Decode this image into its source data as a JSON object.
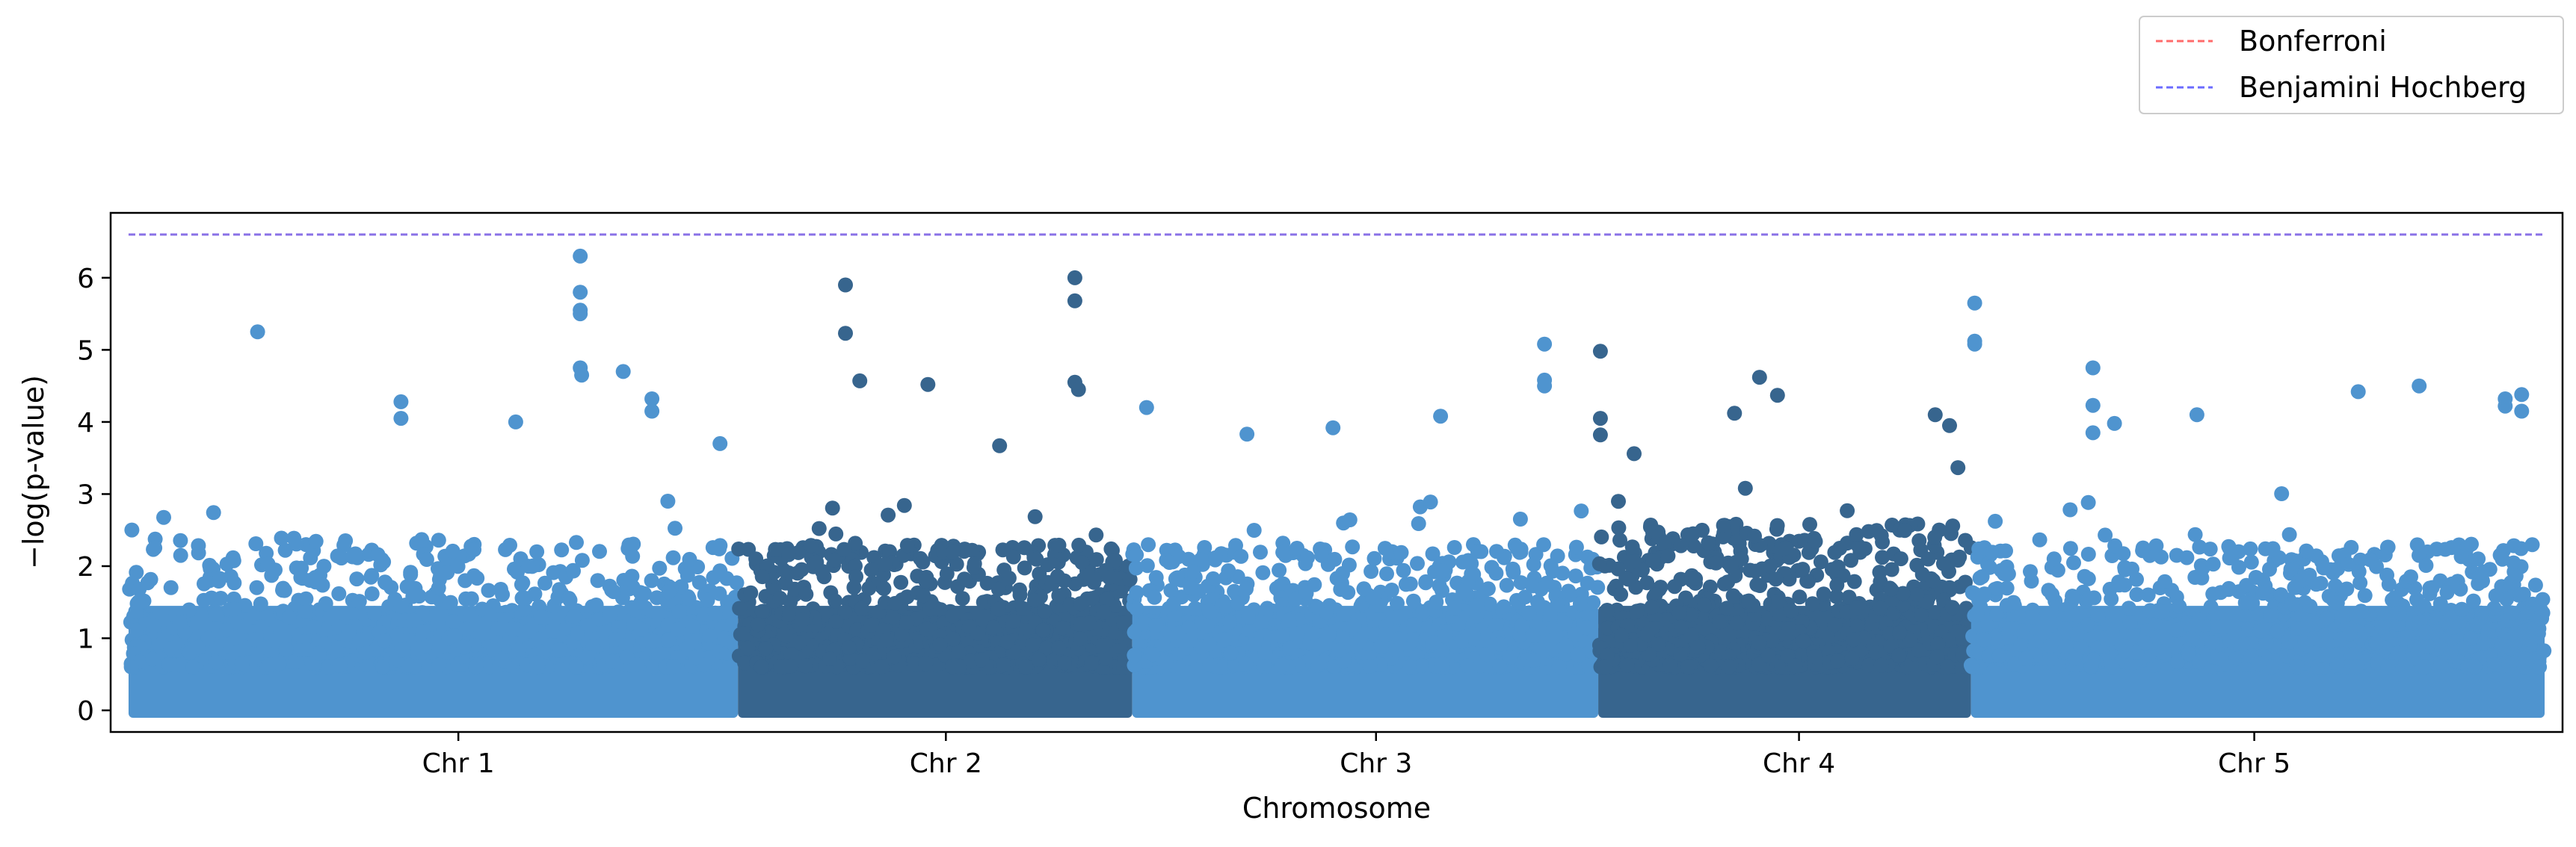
{
  "chart_data": {
    "type": "scatter",
    "title": "",
    "xlabel": "Chromosome",
    "ylabel": "−log(p-value)",
    "ylim": [
      -0.3,
      6.9
    ],
    "yticks": [
      0,
      1,
      2,
      3,
      4,
      5,
      6
    ],
    "grid": false,
    "legend_position": "top-right, outside above plot",
    "colors": {
      "light": "#4f94cf",
      "dark": "#37658e"
    },
    "chromosomes": [
      {
        "name": "Chr 1",
        "start": 0,
        "end": 850,
        "tick": 460,
        "color": "light"
      },
      {
        "name": "Chr 2",
        "start": 850,
        "end": 1400,
        "tick": 1140,
        "color": "dark"
      },
      {
        "name": "Chr 3",
        "start": 1400,
        "end": 2050,
        "tick": 1740,
        "color": "light"
      },
      {
        "name": "Chr 4",
        "start": 2050,
        "end": 2570,
        "tick": 2330,
        "color": "dark"
      },
      {
        "name": "Chr 5",
        "start": 2570,
        "end": 3370,
        "tick": 2965,
        "color": "light"
      }
    ],
    "x_range": [
      -25,
      3395
    ],
    "thresholds": [
      {
        "name": "Bonferroni",
        "value": 6.6,
        "color": "#ff6b6b"
      },
      {
        "name": "Benjamini Hochberg",
        "value": 6.6,
        "color": "#6b6bff"
      }
    ],
    "notable_points": [
      {
        "chr": "Chr 1",
        "x": 180,
        "y": 5.25
      },
      {
        "chr": "Chr 1",
        "x": 380,
        "y": 4.28
      },
      {
        "chr": "Chr 1",
        "x": 380,
        "y": 4.05
      },
      {
        "chr": "Chr 1",
        "x": 540,
        "y": 4.0
      },
      {
        "chr": "Chr 1",
        "x": 630,
        "y": 6.3
      },
      {
        "chr": "Chr 1",
        "x": 630,
        "y": 5.8
      },
      {
        "chr": "Chr 1",
        "x": 630,
        "y": 5.55
      },
      {
        "chr": "Chr 1",
        "x": 630,
        "y": 5.5
      },
      {
        "chr": "Chr 1",
        "x": 630,
        "y": 4.75
      },
      {
        "chr": "Chr 1",
        "x": 632,
        "y": 4.65
      },
      {
        "chr": "Chr 1",
        "x": 690,
        "y": 4.7
      },
      {
        "chr": "Chr 1",
        "x": 730,
        "y": 4.32
      },
      {
        "chr": "Chr 1",
        "x": 730,
        "y": 4.15
      },
      {
        "chr": "Chr 1",
        "x": 825,
        "y": 3.7
      },
      {
        "chr": "Chr 2",
        "x": 1000,
        "y": 5.9
      },
      {
        "chr": "Chr 2",
        "x": 1000,
        "y": 5.23
      },
      {
        "chr": "Chr 2",
        "x": 1020,
        "y": 4.57
      },
      {
        "chr": "Chr 2",
        "x": 1115,
        "y": 4.52
      },
      {
        "chr": "Chr 2",
        "x": 1215,
        "y": 3.67
      },
      {
        "chr": "Chr 2",
        "x": 1320,
        "y": 6.0
      },
      {
        "chr": "Chr 2",
        "x": 1320,
        "y": 5.68
      },
      {
        "chr": "Chr 2",
        "x": 1320,
        "y": 4.55
      },
      {
        "chr": "Chr 2",
        "x": 1325,
        "y": 4.45
      },
      {
        "chr": "Chr 3",
        "x": 1420,
        "y": 4.2
      },
      {
        "chr": "Chr 3",
        "x": 1560,
        "y": 3.83
      },
      {
        "chr": "Chr 3",
        "x": 1680,
        "y": 3.92
      },
      {
        "chr": "Chr 3",
        "x": 1830,
        "y": 4.08
      },
      {
        "chr": "Chr 3",
        "x": 1975,
        "y": 5.08
      },
      {
        "chr": "Chr 3",
        "x": 1975,
        "y": 4.58
      },
      {
        "chr": "Chr 3",
        "x": 1975,
        "y": 4.5
      },
      {
        "chr": "Chr 4",
        "x": 2053,
        "y": 4.98
      },
      {
        "chr": "Chr 4",
        "x": 2053,
        "y": 4.05
      },
      {
        "chr": "Chr 4",
        "x": 2053,
        "y": 3.82
      },
      {
        "chr": "Chr 4",
        "x": 2100,
        "y": 3.56
      },
      {
        "chr": "Chr 4",
        "x": 2275,
        "y": 4.62
      },
      {
        "chr": "Chr 4",
        "x": 2300,
        "y": 4.37
      },
      {
        "chr": "Chr 4",
        "x": 2240,
        "y": 4.12
      },
      {
        "chr": "Chr 4",
        "x": 2520,
        "y": 4.1
      },
      {
        "chr": "Chr 4",
        "x": 2540,
        "y": 3.95
      },
      {
        "chr": "Chr 5",
        "x": 2575,
        "y": 5.65
      },
      {
        "chr": "Chr 5",
        "x": 2575,
        "y": 5.12
      },
      {
        "chr": "Chr 5",
        "x": 2575,
        "y": 5.08
      },
      {
        "chr": "Chr 5",
        "x": 2740,
        "y": 4.75
      },
      {
        "chr": "Chr 5",
        "x": 2740,
        "y": 4.23
      },
      {
        "chr": "Chr 5",
        "x": 2740,
        "y": 3.85
      },
      {
        "chr": "Chr 5",
        "x": 2770,
        "y": 3.98
      },
      {
        "chr": "Chr 5",
        "x": 2885,
        "y": 4.1
      },
      {
        "chr": "Chr 5",
        "x": 3110,
        "y": 4.42
      },
      {
        "chr": "Chr 5",
        "x": 3195,
        "y": 4.5
      },
      {
        "chr": "Chr 5",
        "x": 3315,
        "y": 4.32
      },
      {
        "chr": "Chr 5",
        "x": 3315,
        "y": 4.22
      },
      {
        "chr": "Chr 5",
        "x": 3338,
        "y": 4.38
      },
      {
        "chr": "Chr 5",
        "x": 3338,
        "y": 4.15
      }
    ],
    "baseline_points_per_chromosome": 600,
    "baseline_max": {
      "Chr 1": 2.4,
      "Chr 2": 2.3,
      "Chr 3": 2.3,
      "Chr 4": 2.6,
      "Chr 5": 2.3
    }
  }
}
